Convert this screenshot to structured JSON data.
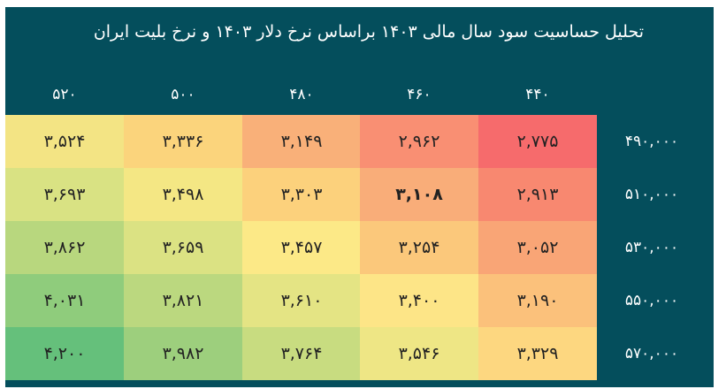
{
  "title": "تحلیل حساسیت سود سال مالی ۱۴۰۳ براساس نرخ دلار ۱۴۰۳ و نرخ بلیت ایران",
  "columns": [
    "۵۲۰",
    "۵۰۰",
    "۴۸۰",
    "۴۶۰",
    "۴۴۰"
  ],
  "rows": [
    {
      "label": "۴۹۰,۰۰۰",
      "cells": [
        "۳,۵۲۴",
        "۳,۳۳۶",
        "۳,۱۴۹",
        "۲,۹۶۲",
        "۲,۷۷۵"
      ],
      "colors": [
        "#f3e484",
        "#fbd47c",
        "#f9b079",
        "#f98f73",
        "#f66b6c"
      ]
    },
    {
      "label": "۵۱۰,۰۰۰",
      "cells": [
        "۳,۶۹۳",
        "۳,۴۹۸",
        "۳,۳۰۳",
        "۳,۱۰۸",
        "۲,۹۱۳"
      ],
      "colors": [
        "#d9e283",
        "#f4e784",
        "#fcd17c",
        "#f9ad79",
        "#f88870"
      ]
    },
    {
      "label": "۵۳۰,۰۰۰",
      "cells": [
        "۳,۸۶۲",
        "۳,۶۵۹",
        "۳,۴۵۷",
        "۳,۲۵۴",
        "۳,۰۵۲"
      ],
      "colors": [
        "#b8d77e",
        "#dbe283",
        "#fce987",
        "#fbc87b",
        "#f9a576"
      ]
    },
    {
      "label": "۵۵۰,۰۰۰",
      "cells": [
        "۴,۰۳۱",
        "۳,۸۲۱",
        "۳,۶۱۰",
        "۳,۴۰۰",
        "۳,۱۹۰"
      ],
      "colors": [
        "#8fcc7c",
        "#bbd87f",
        "#e4e484",
        "#fde587",
        "#fbc17b"
      ]
    },
    {
      "label": "۵۷۰,۰۰۰",
      "cells": [
        "۴,۲۰۰",
        "۳,۹۸۲",
        "۳,۷۶۴",
        "۳,۵۴۶",
        "۳,۳۲۹"
      ],
      "colors": [
        "#65c07b",
        "#9dcf7d",
        "#c8dc80",
        "#eee685",
        "#fdd780"
      ]
    }
  ],
  "bold_cell": {
    "row": 1,
    "col": 3
  }
}
